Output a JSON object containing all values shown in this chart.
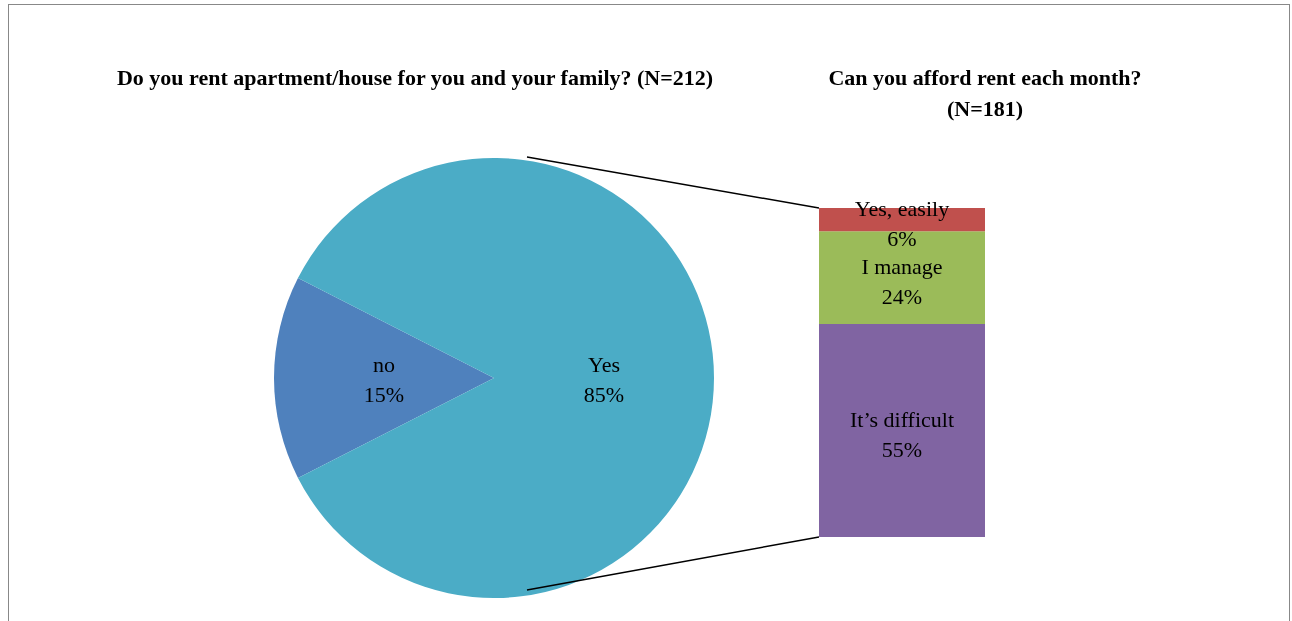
{
  "chart_data": [
    {
      "type": "pie",
      "title": "Do you rent apartment/house for you and your family? (N=212)",
      "categories": [
        "no",
        "Yes"
      ],
      "values": [
        15,
        85
      ],
      "colors": [
        "#4f81bd",
        "#4bacc6"
      ],
      "value_labels": [
        "15%",
        "85%"
      ]
    },
    {
      "type": "bar",
      "title": "Can you afford rent each month? (N=181)",
      "stacked": true,
      "categories": [
        null
      ],
      "series": [
        {
          "name": "It’s difficult",
          "color": "#8064a2",
          "values": [
            55
          ],
          "value_labels": [
            "55%"
          ]
        },
        {
          "name": "I manage",
          "color": "#9bbb59",
          "values": [
            24
          ],
          "value_labels": [
            "24%"
          ]
        },
        {
          "name": "Yes, easily",
          "color": "#c0504d",
          "values": [
            6
          ],
          "value_labels": [
            "6%"
          ]
        }
      ]
    }
  ]
}
